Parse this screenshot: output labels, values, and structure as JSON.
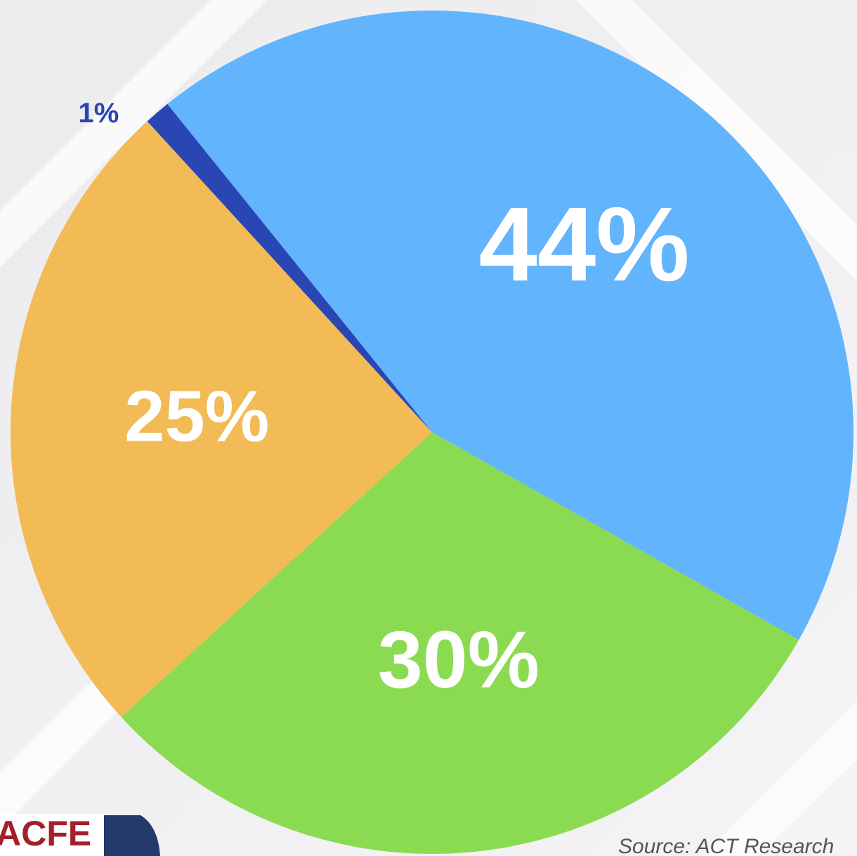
{
  "chart_data": {
    "type": "pie",
    "values": [
      44,
      30,
      25,
      1
    ],
    "value_labels": [
      "44%",
      "30%",
      "25%",
      "1%"
    ],
    "colors": [
      "#62b4fd",
      "#8bdb52",
      "#f2bb55",
      "#2a46b5"
    ],
    "source": "Source: ACT Research"
  },
  "logo": "ACFE"
}
